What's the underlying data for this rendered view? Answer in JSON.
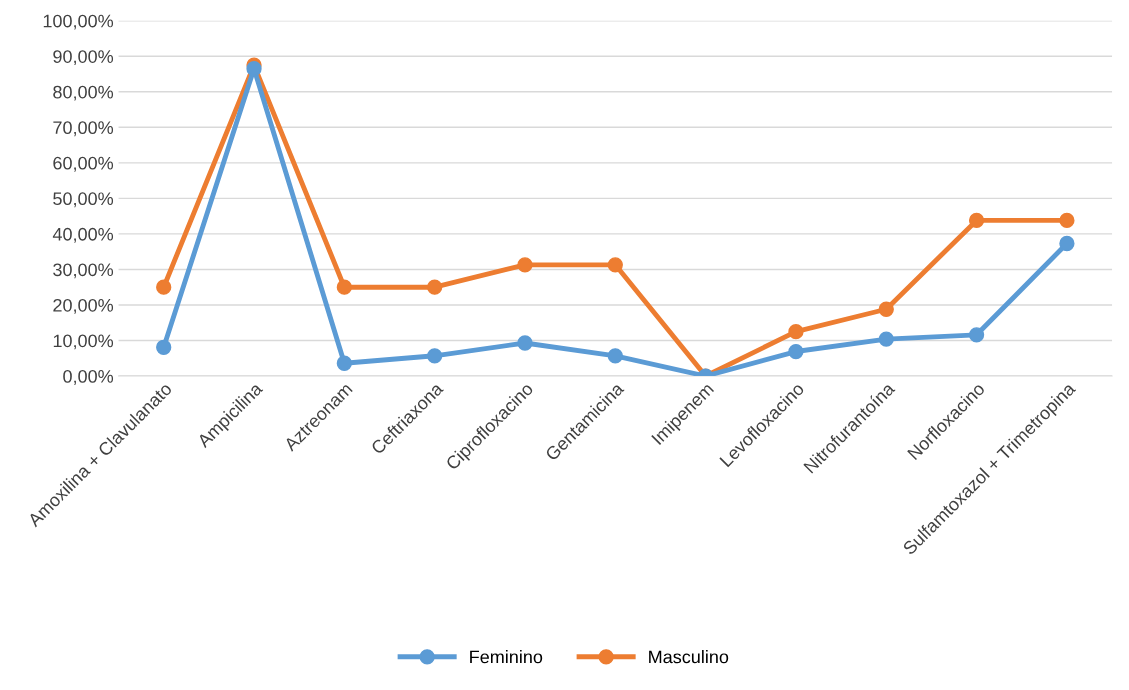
{
  "chart_data": {
    "type": "line",
    "categories": [
      "Amoxilina + Clavulanato",
      "Ampicilina",
      "Aztreonam",
      "Ceftriaxona",
      "Ciprofloxacino",
      "Gentamicina",
      "Imipenem",
      "Levofloxacino",
      "Nitrofurantoína",
      "Norfloxacino",
      "Sulfamtoxazol + Trimetropina"
    ],
    "series": [
      {
        "name": "Feminino",
        "color": "#5b9bd5",
        "values": [
          8.1,
          86.5,
          3.6,
          5.7,
          9.3,
          5.7,
          0,
          6.9,
          10.4,
          11.6,
          37.3
        ]
      },
      {
        "name": "Masculino",
        "color": "#ed7d31",
        "values": [
          25,
          87.5,
          25,
          25,
          31.3,
          31.3,
          0,
          12.5,
          18.8,
          43.8,
          43.8
        ]
      }
    ],
    "ylim": [
      0,
      100
    ],
    "yticks": [
      {
        "value": 0,
        "label": "0,00%"
      },
      {
        "value": 10,
        "label": "10,00%"
      },
      {
        "value": 20,
        "label": "20,00%"
      },
      {
        "value": 30,
        "label": "30,00%"
      },
      {
        "value": 40,
        "label": "40,00%"
      },
      {
        "value": 50,
        "label": "50,00%"
      },
      {
        "value": 60,
        "label": "60,00%"
      },
      {
        "value": 70,
        "label": "70,00%"
      },
      {
        "value": 80,
        "label": "80,00%"
      },
      {
        "value": 90,
        "label": "90,00%"
      },
      {
        "value": 100,
        "label": "100,00%"
      }
    ],
    "grid": "y",
    "legend": "bottom",
    "marker": "circle",
    "line_style": "solid"
  }
}
